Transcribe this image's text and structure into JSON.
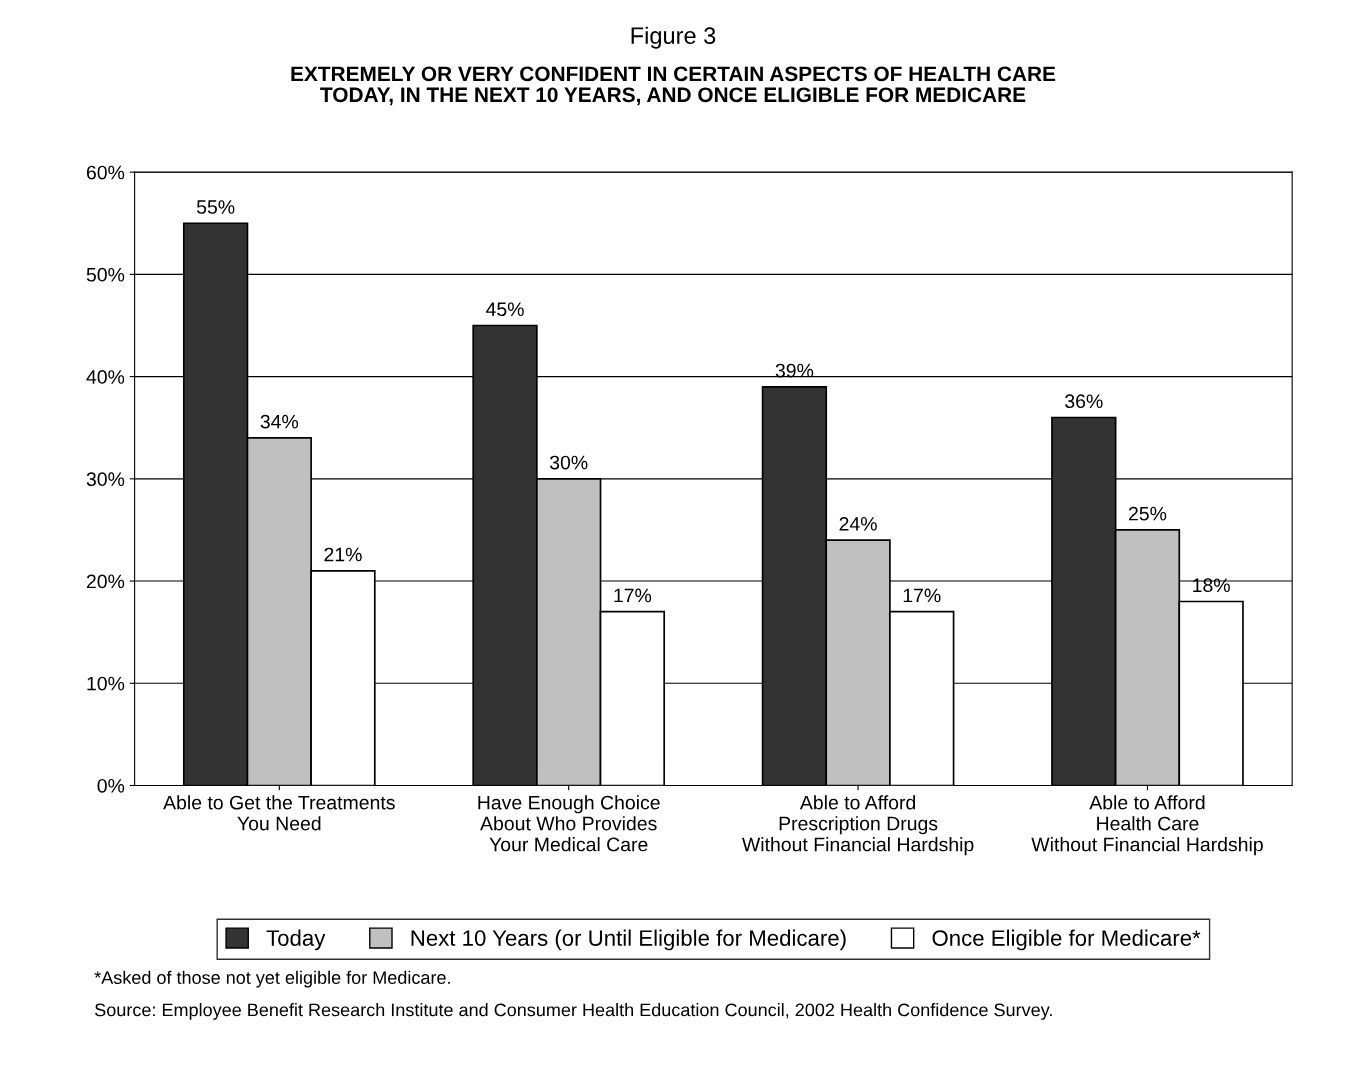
{
  "chart_data": {
    "type": "bar",
    "title": "Figure 3",
    "subtitle": "EXTREMELY OR VERY CONFIDENT IN CERTAIN ASPECTS OF HEALTH CARE\nTODAY, IN THE NEXT 10 YEARS, AND ONCE ELIGIBLE FOR MEDICARE",
    "categories": [
      "Able to Get the Treatments\nYou Need",
      "Have Enough Choice\nAbout Who Provides\nYour Medical Care",
      "Able to Afford\nPrescription Drugs\nWithout Financial Hardship",
      "Able to Afford\nHealth Care\nWithout Financial Hardship"
    ],
    "series": [
      {
        "name": "Today",
        "color": "#333333",
        "values": [
          55,
          45,
          39,
          36
        ],
        "value_labels": [
          "55%",
          "45%",
          "39%",
          "36%"
        ]
      },
      {
        "name": "Next 10 Years (or Until Eligible for Medicare)",
        "color": "#c0c0c0",
        "values": [
          34,
          30,
          24,
          25
        ],
        "value_labels": [
          "34%",
          "30%",
          "24%",
          "25%"
        ]
      },
      {
        "name": "Once Eligible for Medicare*",
        "color": "#ffffff",
        "values": [
          21,
          17,
          17,
          18
        ],
        "value_labels": [
          "21%",
          "17%",
          "17%",
          "18%"
        ]
      }
    ],
    "ylim": [
      0,
      60
    ],
    "yticks": [
      {
        "value": 0,
        "label": "0%"
      },
      {
        "value": 10,
        "label": "10%"
      },
      {
        "value": 20,
        "label": "20%"
      },
      {
        "value": 30,
        "label": "30%"
      },
      {
        "value": 40,
        "label": "40%"
      },
      {
        "value": 50,
        "label": "50%"
      },
      {
        "value": 60,
        "label": "60%"
      }
    ],
    "grid": "y",
    "legend": "bottom",
    "annotations": [
      "*Asked of those not yet eligible for Medicare.",
      "Source: Employee Benefit Research Institute and Consumer Health Education Council, 2002 Health Confidence Survey."
    ]
  }
}
